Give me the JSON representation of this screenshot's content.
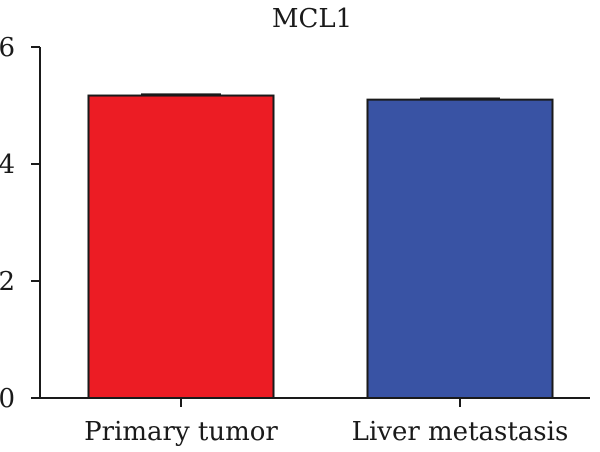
{
  "chart_data": {
    "type": "bar",
    "title": "MCL1",
    "xlabel": "",
    "ylabel": "",
    "categories": [
      "Primary tumor",
      "Liver metastasis"
    ],
    "values": [
      5.17,
      5.1
    ],
    "errors": [
      0.02,
      0.02
    ],
    "colors": [
      "#ec1c24",
      "#3953a4"
    ],
    "ylim": [
      0,
      6
    ],
    "yticks": [
      0,
      2,
      4,
      6
    ],
    "grid": false,
    "legend": "none"
  }
}
